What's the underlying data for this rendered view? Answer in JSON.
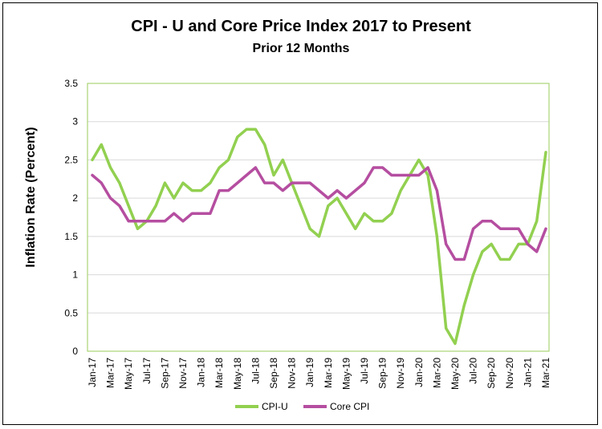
{
  "chart_data": {
    "type": "line",
    "title": "CPI - U and Core Price Index 2017 to Present",
    "subtitle": "Prior 12 Months",
    "xlabel": "",
    "ylabel": "Inflation Rate (Percent)",
    "ylim": [
      0,
      3.5
    ],
    "yticks": [
      "0",
      "0.5",
      "1",
      "1.5",
      "2",
      "2.5",
      "3",
      "3.5"
    ],
    "grid": true,
    "legend_position": "bottom",
    "categories": [
      "Jan-17",
      "Feb-17",
      "Mar-17",
      "Apr-17",
      "May-17",
      "Jun-17",
      "Jul-17",
      "Aug-17",
      "Sep-17",
      "Oct-17",
      "Nov-17",
      "Dec-17",
      "Jan-18",
      "Feb-18",
      "Mar-18",
      "Apr-18",
      "May-18",
      "Jun-18",
      "Jul-18",
      "Aug-18",
      "Sep-18",
      "Oct-18",
      "Nov-18",
      "Dec-18",
      "Jan-19",
      "Feb-19",
      "Mar-19",
      "Apr-19",
      "May-19",
      "Jun-19",
      "Jul-19",
      "Aug-19",
      "Sep-19",
      "Oct-19",
      "Nov-19",
      "Dec-19",
      "Jan-20",
      "Feb-20",
      "Mar-20",
      "Apr-20",
      "May-20",
      "Jun-20",
      "Jul-20",
      "Aug-20",
      "Sep-20",
      "Oct-20",
      "Nov-20",
      "Dec-20",
      "Jan-21",
      "Feb-21",
      "Mar-21"
    ],
    "xtick_labels": [
      "Jan-17",
      "Mar-17",
      "May-17",
      "Jul-17",
      "Sep-17",
      "Nov-17",
      "Jan-18",
      "Mar-18",
      "May-18",
      "Jul-18",
      "Sep-18",
      "Nov-18",
      "Jan-19",
      "Mar-19",
      "May-19",
      "Jul-19",
      "Sep-19",
      "Nov-19",
      "Jan-20",
      "Mar-20",
      "May-20",
      "Jul-20",
      "Sep-20",
      "Nov-20",
      "Jan-21",
      "Mar-21"
    ],
    "series": [
      {
        "name": "CPI-U",
        "color": "#92d050",
        "values": [
          2.5,
          2.7,
          2.4,
          2.2,
          1.9,
          1.6,
          1.7,
          1.9,
          2.2,
          2.0,
          2.2,
          2.1,
          2.1,
          2.2,
          2.4,
          2.5,
          2.8,
          2.9,
          2.9,
          2.7,
          2.3,
          2.5,
          2.2,
          1.9,
          1.6,
          1.5,
          1.9,
          2.0,
          1.8,
          1.6,
          1.8,
          1.7,
          1.7,
          1.8,
          2.1,
          2.3,
          2.5,
          2.3,
          1.5,
          0.3,
          0.1,
          0.6,
          1.0,
          1.3,
          1.4,
          1.2,
          1.2,
          1.4,
          1.4,
          1.7,
          2.6
        ]
      },
      {
        "name": "Core CPI",
        "color": "#b54ea0",
        "values": [
          2.3,
          2.2,
          2.0,
          1.9,
          1.7,
          1.7,
          1.7,
          1.7,
          1.7,
          1.8,
          1.7,
          1.8,
          1.8,
          1.8,
          2.1,
          2.1,
          2.2,
          2.3,
          2.4,
          2.2,
          2.2,
          2.1,
          2.2,
          2.2,
          2.2,
          2.1,
          2.0,
          2.1,
          2.0,
          2.1,
          2.2,
          2.4,
          2.4,
          2.3,
          2.3,
          2.3,
          2.3,
          2.4,
          2.1,
          1.4,
          1.2,
          1.2,
          1.6,
          1.7,
          1.7,
          1.6,
          1.6,
          1.6,
          1.4,
          1.3,
          1.6
        ]
      }
    ]
  }
}
